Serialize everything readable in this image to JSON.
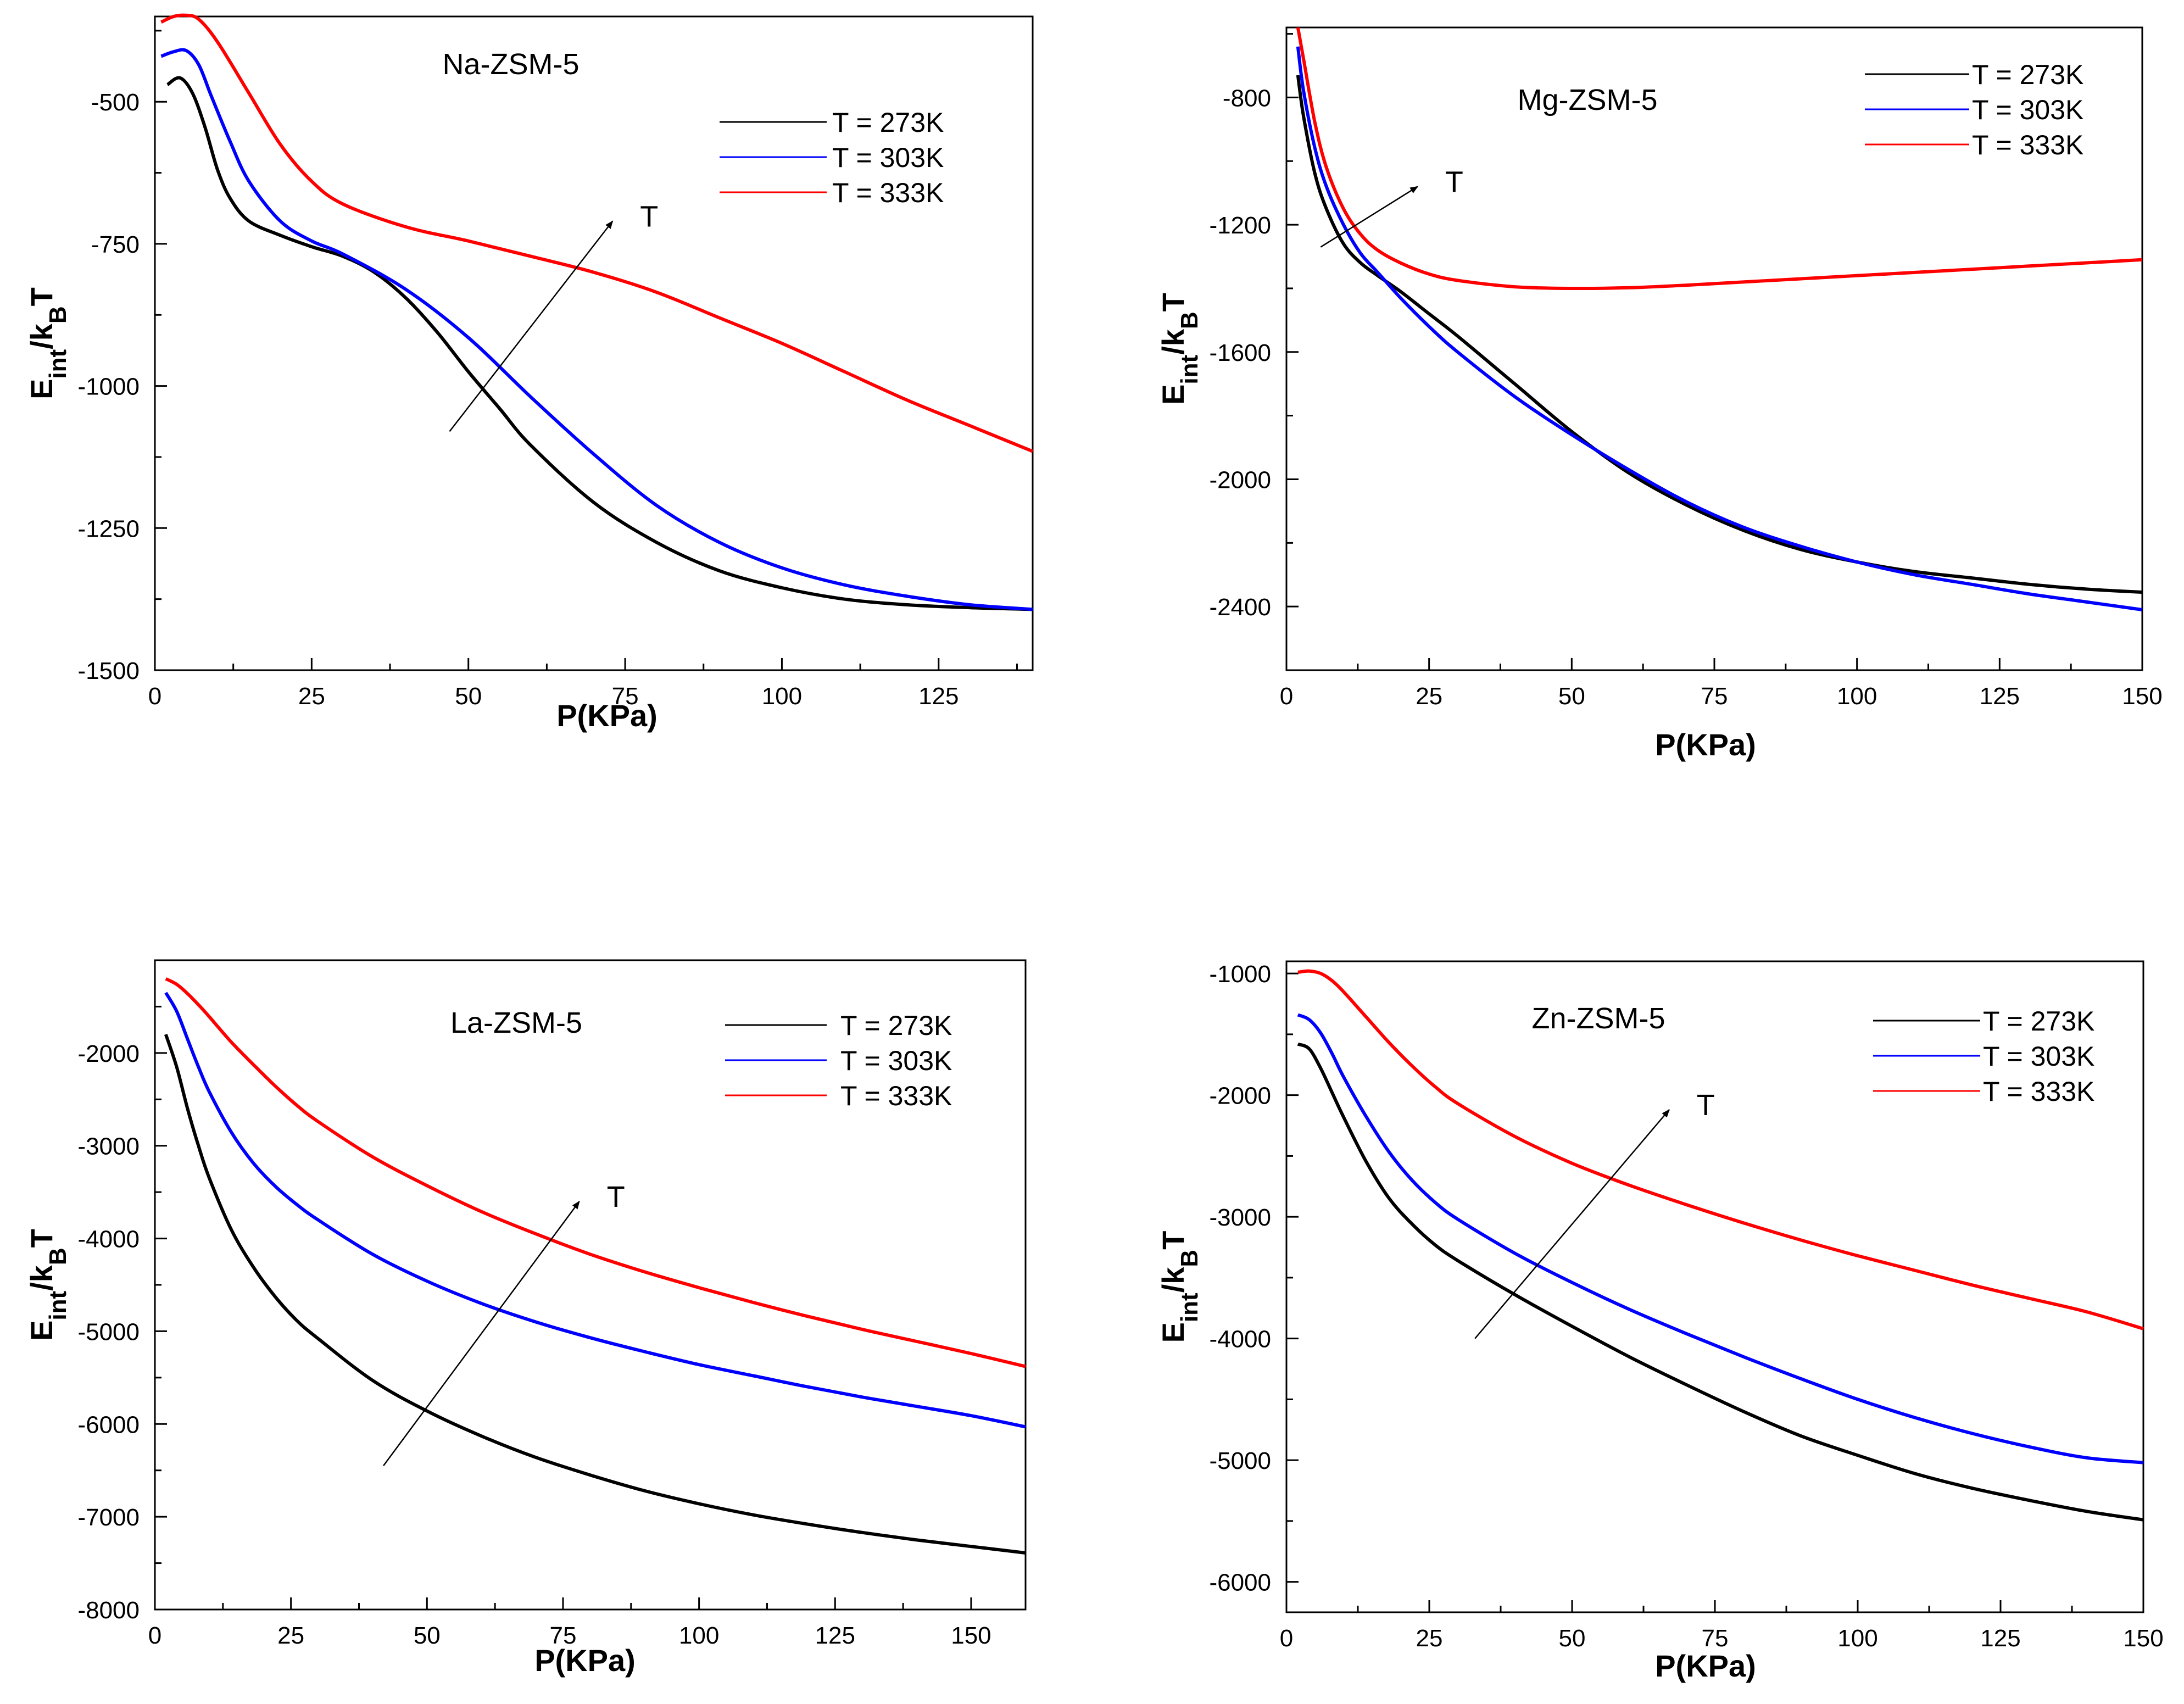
{
  "chart_data": [
    {
      "type": "line",
      "title": "Na-ZSM-5",
      "xlabel": "P(KPa)",
      "ylabel": {
        "main": "E",
        "sub1": "int",
        "mid": "/k",
        "sub2": "B",
        "end": "T"
      },
      "xlim": [
        0,
        140
      ],
      "ylim": [
        -1500,
        -350
      ],
      "xticks": [
        0,
        25,
        50,
        75,
        100,
        125
      ],
      "xtick_labels": [
        "0",
        "25",
        "50",
        "75",
        "100",
        "125"
      ],
      "yticks": [
        -500,
        -750,
        -1000,
        -1250,
        -1500
      ],
      "ytick_labels": [
        "-500",
        "-750",
        "-1000",
        "-1250",
        "-1500"
      ],
      "arrow_label": "T",
      "arrow": {
        "from": [
          47,
          -1080
        ],
        "to": [
          73,
          -710
        ]
      },
      "series": [
        {
          "name": "T = 273K",
          "color": "#000000",
          "x": [
            2,
            4,
            6,
            8,
            10,
            12,
            15,
            20,
            25,
            30,
            35,
            40,
            45,
            50,
            55,
            60,
            70,
            80,
            90,
            100,
            110,
            120,
            130,
            140
          ],
          "y": [
            -470,
            -458,
            -485,
            -545,
            -620,
            -670,
            -710,
            -735,
            -755,
            -772,
            -800,
            -845,
            -905,
            -975,
            -1040,
            -1105,
            -1205,
            -1275,
            -1325,
            -1355,
            -1375,
            -1385,
            -1390,
            -1393
          ]
        },
        {
          "name": "T = 303K",
          "color": "#0000ff",
          "x": [
            1,
            3,
            5,
            7,
            9,
            12,
            15,
            20,
            25,
            30,
            40,
            50,
            60,
            70,
            80,
            90,
            100,
            110,
            120,
            130,
            140
          ],
          "y": [
            -420,
            -412,
            -410,
            -435,
            -490,
            -570,
            -640,
            -710,
            -745,
            -768,
            -830,
            -915,
            -1020,
            -1120,
            -1210,
            -1275,
            -1320,
            -1350,
            -1370,
            -1385,
            -1393
          ]
        },
        {
          "name": "T = 333K",
          "color": "#ff0000",
          "x": [
            1,
            3,
            5,
            7,
            10,
            15,
            20,
            25,
            30,
            40,
            50,
            60,
            70,
            80,
            90,
            100,
            110,
            120,
            130,
            140
          ],
          "y": [
            -360,
            -350,
            -348,
            -355,
            -395,
            -485,
            -575,
            -640,
            -680,
            -720,
            -745,
            -772,
            -800,
            -835,
            -880,
            -925,
            -975,
            -1025,
            -1070,
            -1115
          ]
        }
      ],
      "legend": [
        "T = 273K",
        "T = 303K",
        "T = 333K"
      ]
    },
    {
      "type": "line",
      "title": "Mg-ZSM-5",
      "xlabel": "P(KPa)",
      "ylabel": {
        "main": "E",
        "sub1": "int",
        "mid": "/k",
        "sub2": "B",
        "end": "T"
      },
      "xlim": [
        0,
        150
      ],
      "ylim": [
        -2600,
        -580
      ],
      "xticks": [
        0,
        25,
        50,
        75,
        100,
        125,
        150
      ],
      "xtick_labels": [
        "0",
        "25",
        "50",
        "75",
        "100",
        "125",
        "150"
      ],
      "yticks": [
        -800,
        -1200,
        -1600,
        -2000,
        -2400
      ],
      "ytick_labels": [
        "-800",
        "-1200",
        "-1600",
        "-2000",
        "-2400"
      ],
      "arrow_label": "T",
      "arrow": {
        "from": [
          6,
          -1270
        ],
        "to": [
          23,
          -1080
        ]
      },
      "series": [
        {
          "name": "T = 273K",
          "color": "#000000",
          "x": [
            2,
            3,
            5,
            7,
            10,
            13,
            16,
            20,
            25,
            30,
            40,
            50,
            60,
            70,
            80,
            90,
            100,
            110,
            120,
            130,
            140,
            150
          ],
          "y": [
            -730,
            -860,
            -1040,
            -1150,
            -1260,
            -1320,
            -1360,
            -1410,
            -1480,
            -1550,
            -1700,
            -1850,
            -1980,
            -2080,
            -2160,
            -2220,
            -2260,
            -2290,
            -2310,
            -2330,
            -2345,
            -2355
          ]
        },
        {
          "name": "T = 303K",
          "color": "#0000ff",
          "x": [
            2,
            3,
            5,
            7,
            10,
            13,
            16,
            20,
            25,
            30,
            40,
            50,
            60,
            70,
            80,
            90,
            100,
            110,
            120,
            130,
            140,
            150
          ],
          "y": [
            -640,
            -780,
            -960,
            -1080,
            -1200,
            -1290,
            -1350,
            -1430,
            -1520,
            -1600,
            -1740,
            -1860,
            -1970,
            -2070,
            -2150,
            -2210,
            -2260,
            -2300,
            -2330,
            -2360,
            -2385,
            -2410
          ]
        },
        {
          "name": "T = 333K",
          "color": "#ff0000",
          "x": [
            2,
            3,
            5,
            7,
            10,
            13,
            16,
            20,
            25,
            30,
            40,
            50,
            60,
            70,
            80,
            90,
            100,
            110,
            120,
            130,
            140,
            150
          ],
          "y": [
            -580,
            -680,
            -880,
            -1020,
            -1150,
            -1230,
            -1280,
            -1320,
            -1355,
            -1375,
            -1395,
            -1400,
            -1398,
            -1390,
            -1380,
            -1370,
            -1360,
            -1350,
            -1340,
            -1330,
            -1320,
            -1310
          ]
        }
      ],
      "legend": [
        "T =  273K",
        "T = 303K",
        "T = 333K"
      ]
    },
    {
      "type": "line",
      "title": "La-ZSM-5",
      "xlabel": "P(KPa)",
      "ylabel": {
        "main": "E",
        "sub1": "int",
        "mid": "/k",
        "sub2": "B",
        "end": "T"
      },
      "xlim": [
        0,
        160
      ],
      "ylim": [
        -8000,
        -1000
      ],
      "xticks": [
        0,
        25,
        50,
        75,
        100,
        125,
        150
      ],
      "xtick_labels": [
        "0",
        "25",
        "50",
        "75",
        "100",
        "125",
        "150"
      ],
      "yticks": [
        -2000,
        -3000,
        -4000,
        -5000,
        -6000,
        -7000,
        -8000
      ],
      "ytick_labels": [
        "-2000",
        "-3000",
        "-4000",
        "-5000",
        "-6000",
        "-7000",
        "-8000"
      ],
      "arrow_label": "T",
      "arrow": {
        "from": [
          42,
          -6450
        ],
        "to": [
          78,
          -3600
        ]
      },
      "series": [
        {
          "name": "T = 273K",
          "color": "#000000",
          "x": [
            2,
            4,
            6,
            8,
            10,
            14,
            18,
            22,
            26,
            30,
            40,
            50,
            60,
            70,
            80,
            90,
            100,
            110,
            120,
            130,
            140,
            150,
            160
          ],
          "y": [
            -1800,
            -2150,
            -2600,
            -3000,
            -3350,
            -3900,
            -4300,
            -4620,
            -4880,
            -5080,
            -5530,
            -5860,
            -6130,
            -6360,
            -6550,
            -6720,
            -6860,
            -6980,
            -7080,
            -7170,
            -7250,
            -7320,
            -7390
          ]
        },
        {
          "name": "T = 303K",
          "color": "#0000ff",
          "x": [
            2,
            4,
            6,
            8,
            10,
            14,
            18,
            22,
            26,
            30,
            40,
            50,
            60,
            70,
            80,
            90,
            100,
            110,
            120,
            130,
            140,
            150,
            160
          ],
          "y": [
            -1350,
            -1550,
            -1850,
            -2150,
            -2420,
            -2850,
            -3180,
            -3430,
            -3630,
            -3800,
            -4170,
            -4460,
            -4700,
            -4900,
            -5070,
            -5220,
            -5360,
            -5480,
            -5600,
            -5710,
            -5810,
            -5910,
            -6030
          ]
        },
        {
          "name": "T = 333K",
          "color": "#ff0000",
          "x": [
            2,
            4,
            6,
            8,
            10,
            14,
            18,
            22,
            26,
            30,
            40,
            50,
            60,
            70,
            80,
            90,
            100,
            110,
            120,
            130,
            140,
            150,
            160
          ],
          "y": [
            -1200,
            -1260,
            -1360,
            -1480,
            -1610,
            -1880,
            -2120,
            -2350,
            -2560,
            -2740,
            -3120,
            -3430,
            -3710,
            -3950,
            -4170,
            -4360,
            -4530,
            -4690,
            -4840,
            -4980,
            -5110,
            -5240,
            -5380
          ]
        }
      ],
      "legend": [
        "T = 273K",
        "T = 303K",
        "T = 333K"
      ]
    },
    {
      "type": "line",
      "title": "Zn-ZSM-5",
      "xlabel": "P(KPa)",
      "ylabel": {
        "main": "E",
        "sub1": "int",
        "mid": "/k",
        "sub2": "B",
        "end": "T"
      },
      "xlim": [
        0,
        150
      ],
      "ylim": [
        -6250,
        -900
      ],
      "xticks": [
        0,
        25,
        50,
        75,
        100,
        125,
        150
      ],
      "xtick_labels": [
        "0",
        "25",
        "50",
        "75",
        "100",
        "125",
        "150"
      ],
      "yticks": [
        -1000,
        -2000,
        -3000,
        -4000,
        -5000,
        -6000
      ],
      "ytick_labels": [
        "-1000",
        "-2000",
        "-3000",
        "-4000",
        "-5000",
        "-6000"
      ],
      "arrow_label": "T",
      "arrow": {
        "from": [
          33,
          -4000
        ],
        "to": [
          67,
          -2120
        ]
      },
      "series": [
        {
          "name": "T = 273K",
          "color": "#000000",
          "x": [
            2,
            4,
            6,
            8,
            10,
            14,
            18,
            22,
            26,
            30,
            40,
            50,
            60,
            70,
            80,
            90,
            100,
            110,
            120,
            130,
            140,
            150
          ],
          "y": [
            -1580,
            -1620,
            -1780,
            -1980,
            -2180,
            -2550,
            -2850,
            -3060,
            -3230,
            -3360,
            -3640,
            -3900,
            -4150,
            -4380,
            -4600,
            -4800,
            -4960,
            -5110,
            -5230,
            -5330,
            -5420,
            -5490
          ]
        },
        {
          "name": "T = 303K",
          "color": "#0000ff",
          "x": [
            2,
            4,
            6,
            8,
            10,
            14,
            18,
            22,
            26,
            30,
            40,
            50,
            60,
            70,
            80,
            90,
            100,
            110,
            120,
            130,
            140,
            150
          ],
          "y": [
            -1340,
            -1380,
            -1490,
            -1660,
            -1850,
            -2180,
            -2470,
            -2700,
            -2880,
            -3020,
            -3300,
            -3540,
            -3760,
            -3960,
            -4150,
            -4330,
            -4500,
            -4650,
            -4780,
            -4890,
            -4980,
            -5020
          ]
        },
        {
          "name": "T = 333K",
          "color": "#ff0000",
          "x": [
            2,
            4,
            6,
            8,
            10,
            14,
            18,
            22,
            26,
            30,
            40,
            50,
            60,
            70,
            80,
            90,
            100,
            110,
            120,
            130,
            140,
            150
          ],
          "y": [
            -990,
            -980,
            -1000,
            -1060,
            -1150,
            -1360,
            -1570,
            -1760,
            -1930,
            -2070,
            -2340,
            -2560,
            -2740,
            -2900,
            -3050,
            -3190,
            -3320,
            -3440,
            -3560,
            -3670,
            -3780,
            -3920
          ]
        }
      ],
      "legend": [
        "T = 273K",
        "T = 303K",
        "T = 333K"
      ]
    }
  ]
}
